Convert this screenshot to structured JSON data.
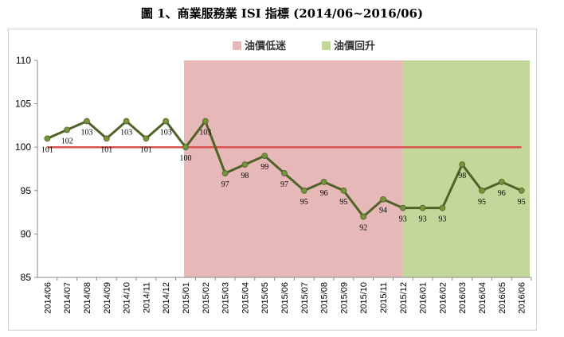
{
  "chart_data": {
    "type": "line",
    "title": "圖 1、商業服務業 ISI 指標 (2014/06~2016/06)",
    "categories": [
      "2014/06",
      "2014/07",
      "2014/08",
      "2014/09",
      "2014/10",
      "2014/11",
      "2014/12",
      "2015/01",
      "2015/02",
      "2015/03",
      "2015/04",
      "2015/05",
      "2015/06",
      "2015/07",
      "2015/08",
      "2015/09",
      "2015/10",
      "2015/11",
      "2015/12",
      "2016/01",
      "2016/02",
      "2016/03",
      "2016/04",
      "2016/05",
      "2016/06"
    ],
    "series": [
      {
        "values": [
          101,
          102,
          103,
          101,
          103,
          101,
          103,
          100,
          103,
          97,
          98,
          99,
          97,
          95,
          96,
          95,
          92,
          94,
          93,
          93,
          93,
          98,
          95,
          96,
          95
        ]
      }
    ],
    "data_labels": [
      "101",
      "102",
      "103",
      "101",
      "103",
      "101",
      "103",
      "100",
      "103",
      "97",
      "98",
      "99",
      "97",
      "95",
      "96",
      "95",
      "92",
      "94",
      "93",
      "93",
      "93",
      "98",
      "95",
      "96",
      "95"
    ],
    "reference_line": 100,
    "ylim": [
      85,
      110
    ],
    "yticks": [
      "85",
      "90",
      "95",
      "100",
      "105",
      "110"
    ],
    "grid": false,
    "legend_position": "top",
    "regions": [
      {
        "label": "油價低迷",
        "start": "2015/01",
        "end": "2015/12",
        "color": "#e6b8b7"
      },
      {
        "label": "油價回升",
        "start": "2015/12",
        "end": "2016/06",
        "color": "#c4d79b"
      }
    ],
    "colors": {
      "line": "#4f6228",
      "marker": "#77933c",
      "reference": "#d9534f",
      "axis": "#888888"
    }
  }
}
